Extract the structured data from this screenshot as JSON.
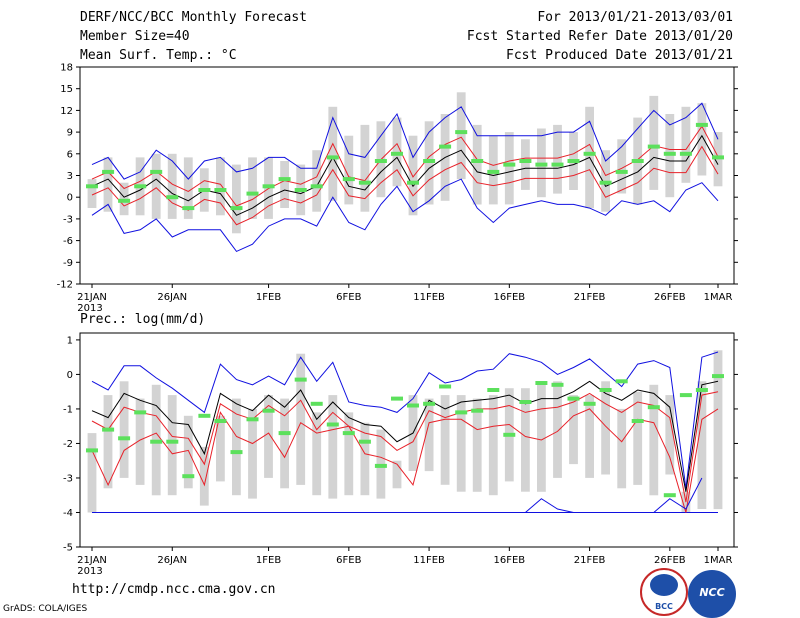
{
  "header": {
    "title": "DERF/NCC/BCC Monthly Forecast",
    "member_size": "Member Size=40",
    "variable": "Mean Surf. Temp.: °C",
    "period": "For 2013/01/21-2013/03/01",
    "started": "Fcst Started Refer Date 2013/01/20",
    "produced": "Fcst Produced Date 2013/01/21"
  },
  "footer": {
    "url": "http://cmdp.ncc.cma.gov.cn",
    "credit": "GrADS: COLA/IGES",
    "logo_bcc": "BCC",
    "logo_ncc": "NCC"
  },
  "colors": {
    "box": "#d3d3d3",
    "mean": "#000000",
    "pct": "#e8222a",
    "extreme": "#1010e0",
    "marker": "#5ce05c",
    "axis": "#000000"
  },
  "chart_data": [
    {
      "type": "line",
      "title": "Mean Surf. Temp.: °C",
      "ylim": [
        -12,
        18
      ],
      "yticks": [
        -12,
        -9,
        -6,
        -3,
        0,
        3,
        6,
        9,
        12,
        15,
        18
      ],
      "xtick_positions": [
        0,
        5,
        11,
        16,
        21,
        26,
        31,
        36,
        39
      ],
      "xtick_labels": [
        "21JAN",
        "26JAN",
        "1FEB",
        "6FEB",
        "11FEB",
        "16FEB",
        "21FEB",
        "26FEB",
        "1MAR"
      ],
      "xtick_sub": "2013",
      "days": 40,
      "series": [
        {
          "name": "mean",
          "values": [
            1.5,
            2.5,
            0,
            1,
            2.5,
            0.5,
            -0.5,
            1,
            0.5,
            -2.5,
            -1.5,
            0,
            1,
            0.5,
            1.5,
            5.5,
            1.5,
            1,
            3.5,
            5.5,
            1.5,
            4,
            5.5,
            6.5,
            3.5,
            3,
            3.5,
            4,
            4,
            4,
            4.5,
            5.5,
            1.5,
            2.5,
            3.5,
            5.5,
            5,
            5,
            8.5,
            4.5
          ]
        },
        {
          "name": "upper_pct",
          "values": [
            2.5,
            3.5,
            1.2,
            2.2,
            3.6,
            1.8,
            0.8,
            2.3,
            1.8,
            -1.2,
            -0.3,
            1.2,
            2.3,
            1.8,
            2.8,
            7.4,
            2.8,
            2.3,
            5.2,
            7.4,
            2.8,
            5.6,
            7.3,
            8.3,
            5.2,
            4.4,
            5,
            5.4,
            5.4,
            5.4,
            6,
            7.3,
            3,
            4,
            5.2,
            7.1,
            6.6,
            6.6,
            9.8,
            5.6
          ]
        },
        {
          "name": "lower_pct",
          "values": [
            0.3,
            1.3,
            -1.2,
            -0.2,
            1.3,
            -0.8,
            -1.8,
            -0.3,
            -0.8,
            -3.8,
            -2.8,
            -1.2,
            -0.2,
            -0.8,
            0.3,
            3.8,
            0.2,
            -0.2,
            2,
            3.8,
            0.2,
            2.4,
            3.8,
            4.8,
            2,
            1.6,
            2,
            2.6,
            2.6,
            2.6,
            3,
            3.8,
            0,
            1,
            2,
            4,
            3.4,
            3.4,
            7,
            3.2
          ]
        },
        {
          "name": "max",
          "values": [
            4.5,
            5.5,
            2.5,
            3.5,
            6.5,
            5,
            2.5,
            5,
            5.5,
            3.5,
            4,
            5.5,
            5.5,
            4,
            4,
            11,
            6,
            5.5,
            8.5,
            11.5,
            5.5,
            9,
            11,
            12.5,
            8.5,
            8.5,
            8.5,
            8.5,
            8.5,
            9,
            9,
            10.5,
            5,
            7,
            9.5,
            12,
            10,
            11,
            13,
            8
          ]
        },
        {
          "name": "min",
          "values": [
            -2.5,
            -1,
            -5,
            -4.5,
            -3,
            -5.5,
            -4.5,
            -4.5,
            -4.5,
            -7.5,
            -6.5,
            -4,
            -3,
            -3,
            -4,
            0,
            -3.5,
            -4.5,
            -1,
            1.5,
            -2,
            -0.5,
            1.5,
            2.5,
            -1.5,
            -3.5,
            -1.5,
            -1,
            -0.5,
            -1,
            -1,
            -1.5,
            -2.5,
            -0.5,
            -1,
            -0.5,
            -2,
            1,
            2,
            -0.5
          ]
        },
        {
          "name": "box_top",
          "values": [
            2.5,
            5.5,
            2,
            5.5,
            6,
            6,
            5.5,
            4,
            5.5,
            4.5,
            5.5,
            5.5,
            5,
            4.5,
            6.5,
            12.5,
            8.5,
            10,
            10.5,
            11,
            8.5,
            10.5,
            11.5,
            14.5,
            10,
            8.5,
            9,
            8,
            9.5,
            10,
            9,
            12.5,
            6.5,
            8,
            11,
            14,
            11.5,
            12.5,
            13,
            9
          ]
        },
        {
          "name": "box_bottom",
          "values": [
            -1.5,
            -2,
            -2.5,
            -2.5,
            -3,
            -3,
            -3,
            -2,
            -2.5,
            -5,
            -3,
            -3,
            -1.5,
            -2.5,
            -2,
            -0.5,
            -1,
            -2,
            0,
            1.5,
            -2.5,
            -1,
            -0.5,
            2.5,
            -1,
            -1,
            -1,
            1,
            0,
            0.5,
            1,
            -1.5,
            -2,
            0.5,
            -1,
            1,
            0,
            2,
            3,
            1.5
          ]
        },
        {
          "name": "marker",
          "values": [
            1.5,
            3.5,
            -0.5,
            1.5,
            3.5,
            0,
            -1.5,
            1,
            1,
            -1.5,
            0.5,
            1.5,
            2.5,
            1,
            1.5,
            5.5,
            2.5,
            2,
            5,
            6,
            2,
            5,
            7,
            9,
            5,
            3.5,
            4.5,
            5,
            4.5,
            4.5,
            5,
            6,
            2,
            3.5,
            5,
            7,
            6,
            6,
            10,
            5.5
          ]
        }
      ]
    },
    {
      "type": "line",
      "title": "Prec.: log(mm/d)",
      "ylim": [
        -5,
        1.2
      ],
      "yticks": [
        -5,
        -4,
        -3,
        -2,
        -1,
        0,
        1
      ],
      "xtick_positions": [
        0,
        5,
        11,
        16,
        21,
        26,
        31,
        36,
        39
      ],
      "xtick_labels": [
        "21JAN",
        "26JAN",
        "1FEB",
        "6FEB",
        "11FEB",
        "16FEB",
        "21FEB",
        "26FEB",
        "1MAR"
      ],
      "xtick_sub": "2013",
      "days": 40,
      "series": [
        {
          "name": "mean",
          "values": [
            -1.05,
            -1.25,
            -0.55,
            -0.75,
            -0.9,
            -1.4,
            -1.45,
            -2.3,
            -0.55,
            -0.85,
            -1.05,
            -0.6,
            -0.95,
            -0.45,
            -1.3,
            -0.8,
            -1.25,
            -1.45,
            -1.5,
            -1.95,
            -1.7,
            -0.75,
            -1.0,
            -0.8,
            -0.75,
            -0.7,
            -0.6,
            -0.85,
            -0.7,
            -0.7,
            -0.5,
            -0.2,
            -0.55,
            -0.75,
            -0.45,
            -0.55,
            -0.95,
            -3.4,
            -0.3,
            -0.2
          ]
        },
        {
          "name": "upper_pct",
          "values": [
            -1.35,
            -1.6,
            -0.95,
            -1.1,
            -1.2,
            -1.8,
            -1.85,
            -2.6,
            -0.85,
            -1.15,
            -1.3,
            -0.9,
            -1.2,
            -0.75,
            -1.6,
            -1.1,
            -1.5,
            -1.7,
            -1.8,
            -2.2,
            -1.95,
            -1.05,
            -1.25,
            -1.1,
            -1.0,
            -1.0,
            -0.9,
            -1.1,
            -1.0,
            -0.95,
            -0.8,
            -0.55,
            -0.85,
            -1.1,
            -0.8,
            -0.9,
            -1.25,
            -3.7,
            -0.6,
            -0.5
          ]
        },
        {
          "name": "lower_pct",
          "values": [
            -2.2,
            -3.2,
            -2.2,
            -1.9,
            -1.7,
            -2.3,
            -2.2,
            -3.2,
            -1.1,
            -1.8,
            -2.0,
            -1.7,
            -2.4,
            -1.4,
            -1.7,
            -1.6,
            -1.5,
            -2.3,
            -2.4,
            -2.6,
            -3.2,
            -1.4,
            -1.3,
            -1.3,
            -1.6,
            -1.5,
            -1.45,
            -1.8,
            -1.9,
            -1.65,
            -1.2,
            -1.0,
            -1.5,
            -1.95,
            -1.3,
            -1.4,
            -2.4,
            -4.0,
            -1.3,
            -1.0
          ]
        },
        {
          "name": "max",
          "values": [
            -0.2,
            -0.45,
            0.25,
            0.25,
            -0.1,
            -0.4,
            -0.75,
            -1.1,
            0.3,
            -0.15,
            -0.3,
            -0.05,
            -0.3,
            0.5,
            -0.2,
            0.35,
            -0.8,
            -0.9,
            -0.95,
            -1.1,
            -0.7,
            0.05,
            -0.25,
            -0.15,
            0.1,
            0.15,
            0.6,
            0.5,
            0.35,
            0.0,
            0.2,
            0.45,
            0.05,
            -0.35,
            0.3,
            0.4,
            0.2,
            -3.3,
            0.5,
            0.65
          ]
        },
        {
          "name": "min",
          "values": [
            -4,
            -4,
            -4,
            -4,
            -4,
            -4,
            -4,
            -4,
            -4,
            -4,
            -4,
            -4,
            -4,
            -4,
            -4,
            -4,
            -4,
            -4,
            -4,
            -4,
            -4,
            -4,
            -4,
            -4,
            -4,
            -4,
            -4,
            -4,
            -4,
            -4,
            -4,
            -4,
            -4,
            -4,
            -4,
            -4,
            -4,
            -4,
            -4,
            -4
          ]
        },
        {
          "name": "box_top",
          "values": [
            -1.7,
            -0.6,
            -0.2,
            -0.7,
            -0.3,
            -0.6,
            -1.2,
            -2.1,
            -1.2,
            -0.7,
            -1.0,
            -0.6,
            -0.7,
            0.6,
            -1.1,
            -0.6,
            -1.1,
            -1.4,
            -1.6,
            -2.5,
            -0.6,
            -0.7,
            -0.6,
            -0.6,
            -0.7,
            -0.6,
            -0.4,
            -0.4,
            -0.2,
            -0.2,
            -0.6,
            -0.6,
            -0.2,
            -1.0,
            -0.5,
            -0.3,
            -0.6,
            -3.4,
            -0.2,
            0.7
          ]
        },
        {
          "name": "box_bottom",
          "values": [
            -4.0,
            -3.3,
            -3.0,
            -3.2,
            -3.5,
            -3.5,
            -3.3,
            -3.8,
            -3.1,
            -3.5,
            -3.6,
            -3.0,
            -3.3,
            -3.2,
            -3.5,
            -3.6,
            -3.5,
            -3.5,
            -3.6,
            -3.3,
            -2.8,
            -2.8,
            -3.2,
            -3.4,
            -3.4,
            -3.5,
            -3.1,
            -3.4,
            -3.4,
            -3.0,
            -2.6,
            -3.0,
            -2.9,
            -3.3,
            -3.2,
            -3.5,
            -2.9,
            -4.0,
            -3.9,
            -3.9
          ]
        },
        {
          "name": "marker",
          "values": [
            -2.2,
            -1.6,
            -1.85,
            -1.1,
            -1.95,
            -1.95,
            -2.95,
            -1.2,
            -1.35,
            -2.25,
            -1.3,
            -1.05,
            -1.7,
            -0.15,
            -0.85,
            -1.45,
            -1.7,
            -1.95,
            -2.65,
            -0.7,
            -0.9,
            -0.85,
            -0.35,
            -1.1,
            -1.05,
            -0.45,
            -1.75,
            -0.8,
            -0.25,
            -0.3,
            -0.7,
            -0.85,
            -0.45,
            -0.2,
            -1.35,
            -0.95,
            -3.5,
            -0.6,
            -0.45,
            -0.05
          ]
        },
        {
          "name": "extra_low",
          "values": [
            null,
            null,
            null,
            null,
            null,
            null,
            null,
            null,
            null,
            null,
            null,
            null,
            null,
            null,
            null,
            null,
            null,
            null,
            null,
            null,
            null,
            null,
            null,
            null,
            null,
            null,
            null,
            -4.0,
            -3.6,
            -3.9,
            -4.0,
            null,
            null,
            null,
            null,
            -4.0,
            -3.6,
            -3.9,
            -3.0,
            null
          ]
        }
      ]
    }
  ]
}
